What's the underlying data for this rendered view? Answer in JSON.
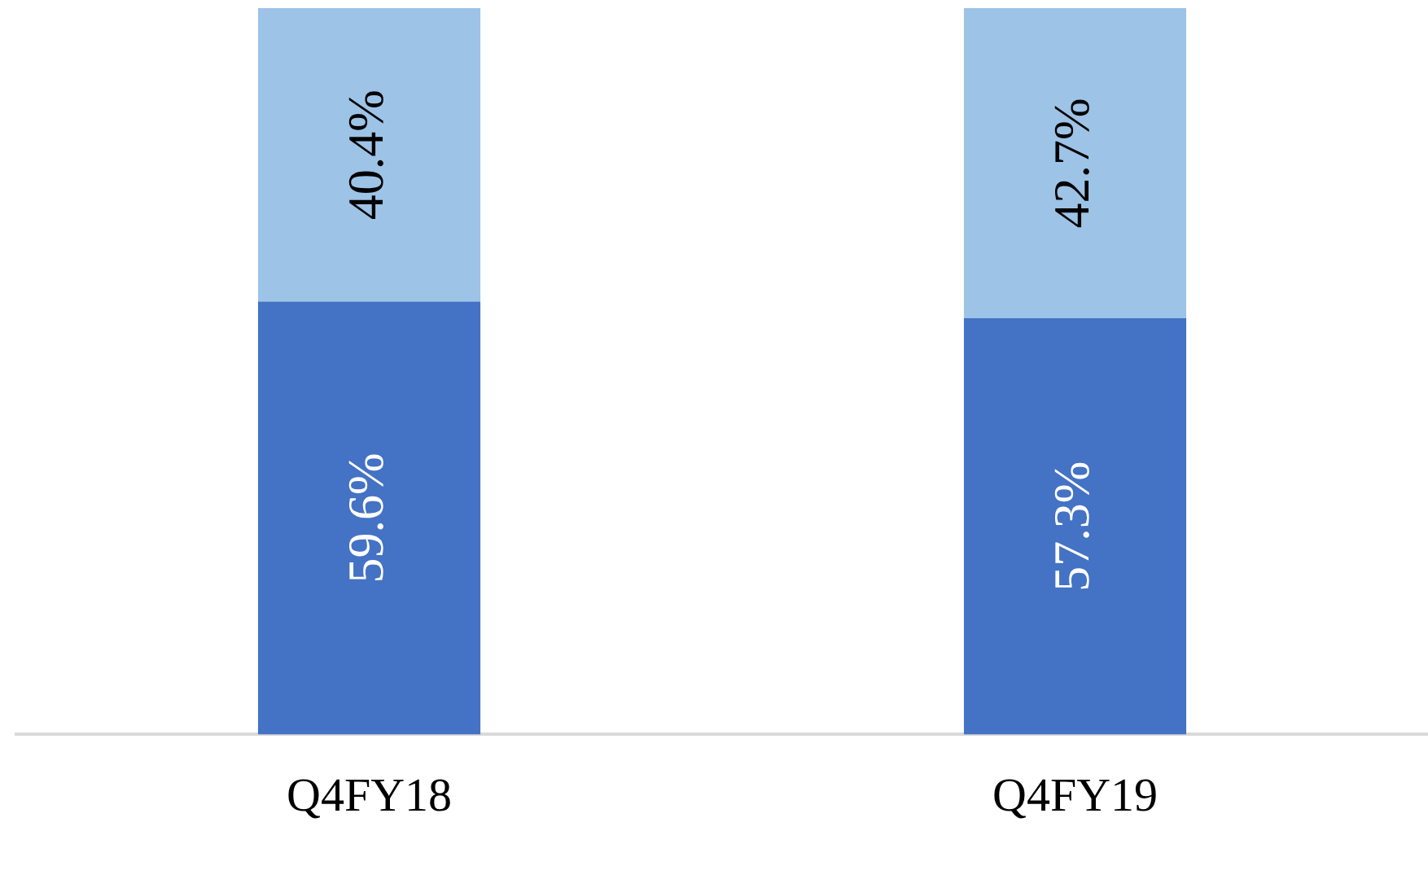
{
  "chart_data": {
    "type": "bar",
    "stacked": true,
    "categories": [
      "Q4FY18",
      "Q4FY19"
    ],
    "series": [
      {
        "color": "#4472c4",
        "values": [
          59.6,
          57.3
        ],
        "value_labels": [
          "59.6%",
          "57.3%"
        ]
      },
      {
        "color": "#9dc3e6",
        "values": [
          40.4,
          42.7
        ],
        "value_labels": [
          "40.4%",
          "42.7%"
        ]
      }
    ],
    "tick_labels": "x",
    "grid": false,
    "legend": false
  }
}
